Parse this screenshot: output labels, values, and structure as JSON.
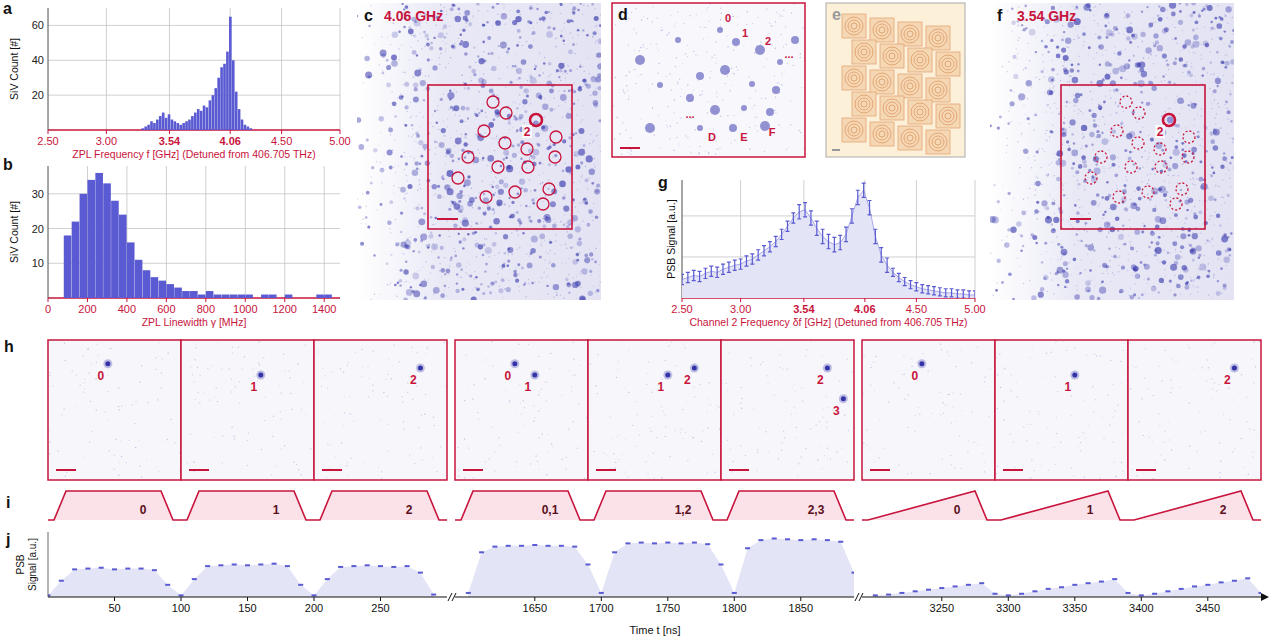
{
  "chart_data": [
    {
      "type": "histogram",
      "panel_label": "a",
      "x_label": "ZPL Frequency f [GHz] (Detuned from 406.705 THz)",
      "y_label": "SiV Count [#]",
      "bins": [
        3.3,
        3.325,
        3.35,
        3.375,
        3.4,
        3.425,
        3.45,
        3.475,
        3.5,
        3.525,
        3.55,
        3.575,
        3.6,
        3.625,
        3.65,
        3.675,
        3.7,
        3.725,
        3.75,
        3.775,
        3.8,
        3.825,
        3.85,
        3.875,
        3.9,
        3.925,
        3.95,
        3.975,
        4.0,
        4.025,
        4.05,
        4.075,
        4.1,
        4.125,
        4.15,
        4.175,
        4.2,
        4.225,
        4.25
      ],
      "values": [
        1,
        2,
        3,
        5,
        4,
        6,
        8,
        10,
        7,
        9,
        6,
        5,
        4,
        3,
        4,
        5,
        6,
        8,
        10,
        12,
        11,
        14,
        13,
        17,
        20,
        24,
        30,
        36,
        38,
        45,
        65,
        40,
        22,
        12,
        6,
        3,
        2,
        1
      ],
      "color": "#5a5ad2",
      "xlim": [
        2.5,
        5.0
      ],
      "ylim": [
        0,
        70
      ],
      "xticks": [
        {
          "value": 2.5,
          "label": "2.50"
        },
        {
          "value": 3.0,
          "label": "3.00"
        },
        3.54,
        4.06,
        {
          "value": 4.5,
          "label": "4.50"
        },
        {
          "value": 5.0,
          "label": "5.00"
        }
      ],
      "yticks": [
        20,
        40,
        60
      ],
      "grid": true
    },
    {
      "type": "histogram",
      "panel_label": "b",
      "x_label": "ZPL Linewidth γ [MHz]",
      "y_label": "SiV Count [#]",
      "bins": [
        80,
        120,
        160,
        200,
        240,
        280,
        320,
        360,
        400,
        440,
        480,
        520,
        560,
        600,
        640,
        680,
        720,
        760,
        800,
        840,
        880,
        920,
        960,
        1000,
        1040,
        1080,
        1120,
        1160,
        1200,
        1240,
        1280,
        1320,
        1360,
        1400,
        1440
      ],
      "values": [
        18,
        22,
        30,
        34,
        36,
        33,
        28,
        24,
        16,
        11,
        8,
        6,
        5,
        4,
        3,
        2,
        2,
        1,
        2,
        1,
        1,
        1,
        1,
        1,
        0,
        1,
        1,
        0,
        1,
        0,
        0,
        0,
        1,
        1
      ],
      "color": "#5a5ad2",
      "xlim": [
        0,
        1480
      ],
      "ylim": [
        0,
        38
      ],
      "xticks": [
        0,
        200,
        400,
        600,
        800,
        1000,
        1200,
        1400
      ],
      "yticks": [
        10,
        20,
        30
      ],
      "grid": true
    },
    {
      "type": "line",
      "panel_label": "g",
      "x_label": "Channel 2 Frequency δf [GHz] (Detuned from 406.705 THz)",
      "y_label": "PSB Signal [a.u.]",
      "x": [
        2.5,
        2.55,
        2.6,
        2.65,
        2.7,
        2.75,
        2.8,
        2.85,
        2.9,
        2.95,
        3.0,
        3.05,
        3.1,
        3.15,
        3.2,
        3.25,
        3.3,
        3.35,
        3.4,
        3.45,
        3.5,
        3.55,
        3.6,
        3.65,
        3.7,
        3.75,
        3.8,
        3.85,
        3.9,
        3.95,
        4.0,
        4.05,
        4.1,
        4.15,
        4.2,
        4.25,
        4.3,
        4.35,
        4.4,
        4.45,
        4.5,
        4.55,
        4.6,
        4.65,
        4.7,
        4.75,
        4.8,
        4.85,
        4.9,
        4.95,
        5.0
      ],
      "values": [
        0.18,
        0.2,
        0.22,
        0.21,
        0.24,
        0.26,
        0.25,
        0.28,
        0.3,
        0.32,
        0.33,
        0.36,
        0.38,
        0.42,
        0.46,
        0.5,
        0.55,
        0.62,
        0.7,
        0.78,
        0.84,
        0.86,
        0.78,
        0.68,
        0.6,
        0.55,
        0.52,
        0.54,
        0.62,
        0.8,
        0.98,
        1.05,
        0.88,
        0.6,
        0.42,
        0.32,
        0.25,
        0.2,
        0.16,
        0.13,
        0.11,
        0.09,
        0.08,
        0.07,
        0.06,
        0.05,
        0.05,
        0.04,
        0.04,
        0.03,
        0.03
      ],
      "errors": [
        0.05,
        0.05,
        0.05,
        0.05,
        0.05,
        0.05,
        0.05,
        0.05,
        0.05,
        0.05,
        0.05,
        0.05,
        0.05,
        0.05,
        0.05,
        0.05,
        0.05,
        0.05,
        0.05,
        0.05,
        0.07,
        0.07,
        0.07,
        0.07,
        0.07,
        0.07,
        0.07,
        0.07,
        0.07,
        0.07,
        0.07,
        0.07,
        0.07,
        0.07,
        0.07,
        0.07,
        0.04,
        0.04,
        0.04,
        0.04,
        0.04,
        0.04,
        0.04,
        0.04,
        0.04,
        0.04,
        0.04,
        0.04,
        0.04,
        0.04,
        0.04
      ],
      "color": "#5a5ad2",
      "xlim": [
        2.5,
        5.0
      ],
      "ylim": [
        0,
        1.15
      ],
      "xticks": [
        {
          "value": 2.5,
          "label": "2.50"
        },
        {
          "value": 3.0,
          "label": "3.00"
        },
        3.54,
        4.06,
        {
          "value": 4.5,
          "label": "4.50"
        },
        {
          "value": 5.0,
          "label": "5.00"
        }
      ],
      "yticks": [
        0.4,
        0.8
      ],
      "tick_labels": "x",
      "grid": true
    },
    {
      "type": "line",
      "panel_label": "j",
      "x_label": "Time t [ns]",
      "y_label": "PSB Signal [a.u.]",
      "color": "#5a5ad2",
      "ylim": [
        0,
        0.8
      ],
      "tick_labels": "x",
      "series": [
        {
          "xlim": [
            0,
            300
          ],
          "xticks": [
            50,
            100,
            150,
            200,
            250
          ],
          "x": [
            0,
            10,
            20,
            30,
            40,
            50,
            60,
            70,
            80,
            90,
            100,
            110,
            120,
            130,
            140,
            150,
            160,
            170,
            180,
            190,
            200,
            210,
            220,
            230,
            240,
            250,
            260,
            270,
            280,
            290
          ],
          "values": [
            0.02,
            0.2,
            0.34,
            0.35,
            0.36,
            0.34,
            0.35,
            0.35,
            0.33,
            0.15,
            0.02,
            0.22,
            0.38,
            0.39,
            0.4,
            0.39,
            0.4,
            0.41,
            0.38,
            0.15,
            0.02,
            0.22,
            0.37,
            0.38,
            0.39,
            0.38,
            0.37,
            0.38,
            0.3,
            0.03
          ]
        },
        {
          "xlim": [
            1590,
            1890
          ],
          "xticks": [
            1650,
            1700,
            1750,
            1800,
            1850
          ],
          "x": [
            1600,
            1610,
            1620,
            1630,
            1640,
            1650,
            1660,
            1670,
            1680,
            1690,
            1700,
            1710,
            1720,
            1730,
            1740,
            1750,
            1760,
            1770,
            1780,
            1790,
            1800,
            1810,
            1820,
            1830,
            1840,
            1850,
            1860,
            1870,
            1880,
            1890
          ],
          "values": [
            0.05,
            0.55,
            0.62,
            0.63,
            0.63,
            0.64,
            0.63,
            0.63,
            0.62,
            0.4,
            0.05,
            0.55,
            0.66,
            0.67,
            0.66,
            0.67,
            0.66,
            0.67,
            0.65,
            0.4,
            0.05,
            0.6,
            0.7,
            0.72,
            0.71,
            0.7,
            0.71,
            0.7,
            0.68,
            0.3
          ]
        },
        {
          "xlim": [
            3190,
            3490
          ],
          "xticks": [
            3250,
            3300,
            3350,
            3400,
            3450
          ],
          "x": [
            3200,
            3210,
            3220,
            3230,
            3240,
            3250,
            3260,
            3270,
            3280,
            3290,
            3300,
            3310,
            3320,
            3330,
            3340,
            3350,
            3360,
            3370,
            3380,
            3390,
            3400,
            3410,
            3420,
            3430,
            3440,
            3450,
            3460,
            3470,
            3480,
            3490
          ],
          "values": [
            0.02,
            0.03,
            0.05,
            0.07,
            0.09,
            0.11,
            0.13,
            0.15,
            0.17,
            0.04,
            0.02,
            0.04,
            0.07,
            0.1,
            0.12,
            0.15,
            0.17,
            0.19,
            0.22,
            0.05,
            0.02,
            0.04,
            0.07,
            0.1,
            0.13,
            0.15,
            0.18,
            0.2,
            0.23,
            0.05
          ]
        }
      ]
    }
  ],
  "image_panels": [
    {
      "panel_label": "c",
      "title": "4.06 GHz",
      "labels": [
        "2"
      ]
    },
    {
      "panel_label": "d",
      "labels": [
        "0",
        "1",
        "2",
        "...",
        "...",
        "D",
        "E",
        "F"
      ]
    },
    {
      "panel_label": "e"
    },
    {
      "panel_label": "f",
      "title": "3.54 GHz",
      "labels": [
        "2"
      ]
    }
  ],
  "frames_panel": {
    "panel_label": "h",
    "frames": [
      [
        "0"
      ],
      [
        "1"
      ],
      [
        "2"
      ],
      [
        "0",
        "1"
      ],
      [
        "1",
        "2"
      ],
      [
        "2",
        "3"
      ],
      [
        "0"
      ],
      [
        "1"
      ],
      [
        "2"
      ]
    ]
  },
  "pulse_panel": {
    "panel_label": "i",
    "pulses": [
      {
        "label": "0",
        "shape": "flat"
      },
      {
        "label": "1",
        "shape": "flat"
      },
      {
        "label": "2",
        "shape": "flat"
      },
      {
        "label": "0,1",
        "shape": "flat"
      },
      {
        "label": "1,2",
        "shape": "flat"
      },
      {
        "label": "2,3",
        "shape": "flat"
      },
      {
        "label": "0",
        "shape": "ramp"
      },
      {
        "label": "1",
        "shape": "ramp"
      },
      {
        "label": "2",
        "shape": "ramp"
      }
    ]
  }
}
